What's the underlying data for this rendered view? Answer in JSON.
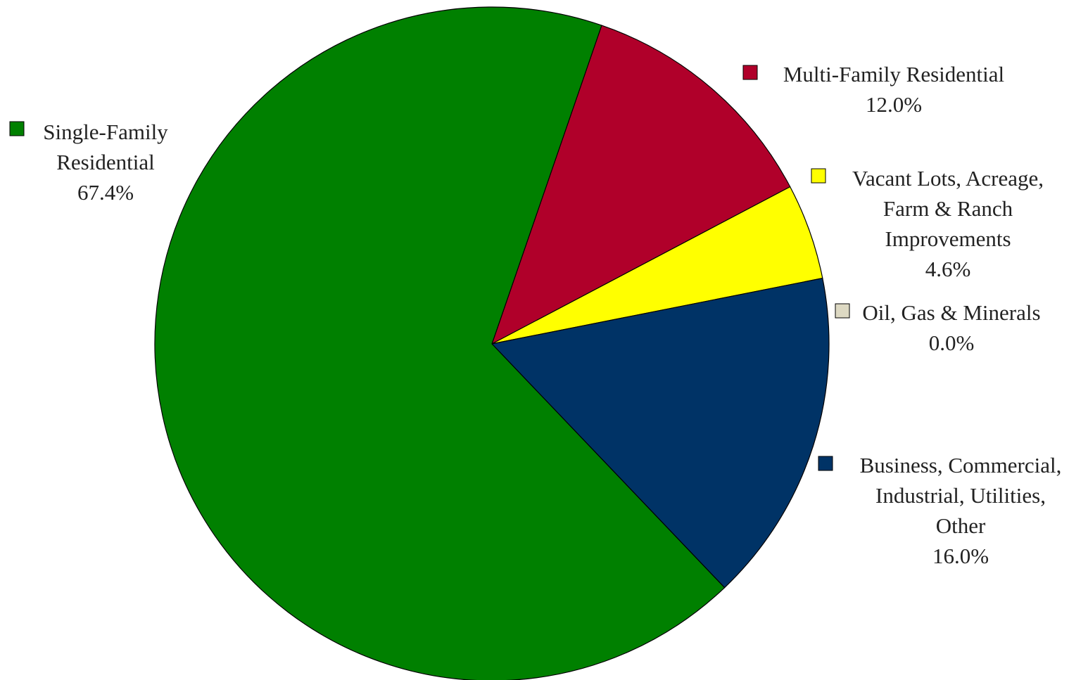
{
  "chart_data": {
    "type": "pie",
    "slices": [
      {
        "label_lines": [
          "Multi-Family Residential"
        ],
        "value_label": "12.0%",
        "value": 12.0,
        "color": "#B0002A"
      },
      {
        "label_lines": [
          "Vacant Lots, Acreage,",
          "Farm & Ranch",
          "Improvements"
        ],
        "value_label": "4.6%",
        "value": 4.6,
        "color": "#FFFF00"
      },
      {
        "label_lines": [
          "Oil, Gas & Minerals"
        ],
        "value_label": "0.0%",
        "value": 0.0,
        "color": "#DDD9C3"
      },
      {
        "label_lines": [
          "Business, Commercial,",
          "Industrial, Utilities,",
          "Other"
        ],
        "value_label": "16.0%",
        "value": 16.0,
        "color": "#003366"
      },
      {
        "label_lines": [
          "Single-Family",
          "Residential"
        ],
        "value_label": "67.4%",
        "value": 67.4,
        "color": "#008000"
      }
    ],
    "start_angle_deg": 19,
    "direction": "clockwise",
    "legend": "labels beside slices"
  }
}
